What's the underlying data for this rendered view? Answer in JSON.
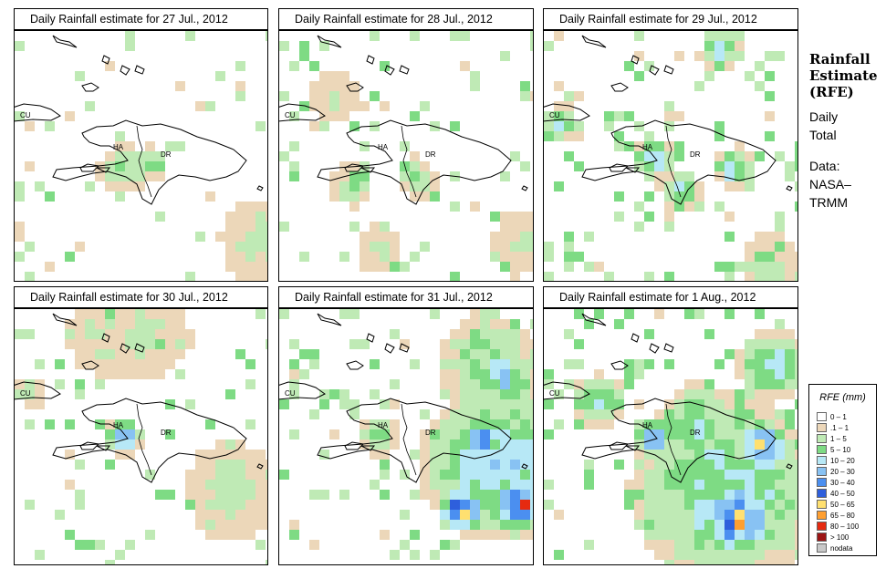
{
  "panels": [
    {
      "title": "Daily Rainfall estimate for  27 Jul., 2012"
    },
    {
      "title": "Daily Rainfall estimate for  28 Jul., 2012"
    },
    {
      "title": "Daily Rainfall estimate for  29 Jul., 2012"
    },
    {
      "title": "Daily Rainfall estimate for  30 Jul., 2012"
    },
    {
      "title": "Daily Rainfall estimate for  31 Jul., 2012"
    },
    {
      "title": "Daily Rainfall estimate for  1 Aug., 2012"
    }
  ],
  "map_labels": {
    "cuba": "CU",
    "haiti": "HA",
    "dr": "DR"
  },
  "sidebar": {
    "title_lines": [
      "Rainfall",
      "Estimate",
      "(RFE)"
    ],
    "period_lines": [
      "Daily",
      "Total"
    ],
    "source_lines": [
      "Data:",
      "NASA–",
      "TRMM"
    ]
  },
  "legend": {
    "title": "RFE (mm)",
    "items": [
      {
        "label": "0 – 1",
        "color": "#ffffff"
      },
      {
        "label": ".1 – 1",
        "color": "#ecd7b9"
      },
      {
        "label": "1 – 5",
        "color": "#bfeab5"
      },
      {
        "label": "5 – 10",
        "color": "#7edb84"
      },
      {
        "label": "10 – 20",
        "color": "#b7e8f6"
      },
      {
        "label": "20 – 30",
        "color": "#88c2f3"
      },
      {
        "label": "30 – 40",
        "color": "#4b8ff0"
      },
      {
        "label": "40 – 50",
        "color": "#2e5fdc"
      },
      {
        "label": "50 – 65",
        "color": "#ffe070"
      },
      {
        "label": "65 – 80",
        "color": "#ff9f30"
      },
      {
        "label": "80 – 100",
        "color": "#e62a10"
      },
      {
        "label": "> 100",
        "color": "#9c1414"
      },
      {
        "label": "nodata",
        "color": "#c8c8c8"
      }
    ]
  }
}
